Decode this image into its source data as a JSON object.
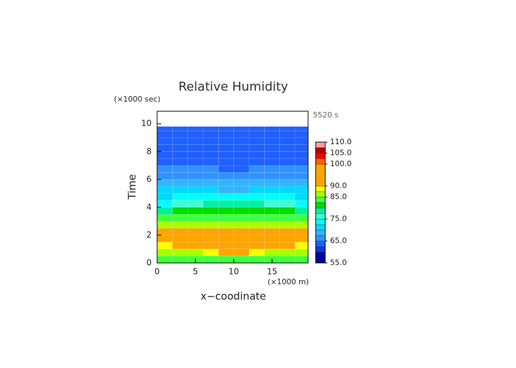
{
  "chart_data": {
    "type": "filled_contour",
    "title": "Relative Humidity",
    "time_label": "5520 s",
    "ylabel": "Time",
    "ylabel_unit": "(×1000 sec)",
    "xlabel": "x−coodinate",
    "xlabel_unit": "(×1000 m)",
    "x_edges": [
      0,
      2,
      4,
      6,
      8,
      10,
      12,
      14,
      16,
      18,
      19.7
    ],
    "y_edges": [
      0,
      0.5,
      1,
      1.5,
      2,
      2.5,
      3,
      3.5,
      4,
      4.5,
      5,
      5.5,
      6,
      6.5,
      7,
      7.5,
      8,
      8.5,
      9,
      9.5,
      9.8
    ],
    "z": [
      [
        83,
        83,
        84,
        84,
        84,
        84,
        84,
        84,
        83,
        83
      ],
      [
        86,
        86,
        87,
        89,
        95,
        95,
        89,
        87,
        86,
        86
      ],
      [
        89,
        90,
        94,
        95,
        95,
        95,
        95,
        94,
        90,
        89
      ],
      [
        95,
        95,
        95,
        95,
        95,
        95,
        95,
        95,
        95,
        95
      ],
      [
        91,
        91,
        91,
        91,
        91,
        91,
        91,
        91,
        91,
        91
      ],
      [
        86,
        86,
        86,
        86,
        86,
        86,
        86,
        86,
        86,
        86
      ],
      [
        83,
        83,
        83,
        83,
        83,
        83,
        83,
        83,
        83,
        83
      ],
      [
        79,
        80,
        81,
        81,
        81,
        81,
        81,
        81,
        80,
        79
      ],
      [
        74,
        75,
        76,
        78,
        78,
        78,
        78,
        76,
        75,
        74
      ],
      [
        71,
        73,
        74,
        74,
        74,
        74,
        74,
        74,
        73,
        71
      ],
      [
        71,
        71,
        71,
        70,
        69,
        69,
        70,
        71,
        71,
        71
      ],
      [
        68,
        68,
        68,
        68,
        68,
        68,
        68,
        68,
        68,
        68
      ],
      [
        66,
        66,
        66,
        66,
        66,
        66,
        66,
        66,
        66,
        66
      ],
      [
        66,
        66,
        66,
        65,
        64,
        64,
        65,
        66,
        66,
        66
      ],
      [
        63,
        63,
        63,
        63,
        63,
        63,
        63,
        63,
        63,
        63
      ],
      [
        63,
        63,
        63,
        63,
        63,
        63,
        63,
        63,
        63,
        63
      ],
      [
        63,
        63,
        63,
        63,
        63,
        63,
        63,
        63,
        63,
        63
      ],
      [
        63,
        63,
        63,
        63,
        63,
        63,
        63,
        63,
        63,
        63
      ],
      [
        63,
        63,
        63,
        63,
        63,
        63,
        63,
        63,
        63,
        63
      ],
      [
        63,
        63,
        63,
        63,
        63,
        63,
        63,
        63,
        63,
        63
      ]
    ],
    "xlim": [
      0,
      19.7
    ],
    "ylim": [
      0,
      10.9
    ],
    "xticks": [
      0,
      5,
      10,
      15
    ],
    "yticks": [
      0,
      2,
      4,
      6,
      8,
      10
    ],
    "colorbar": {
      "levels": [
        55,
        60,
        62.5,
        65,
        67.5,
        70,
        72.5,
        75,
        77.5,
        80,
        82.5,
        85,
        87.5,
        90,
        100,
        102.5,
        105,
        107.5,
        110
      ],
      "colors": [
        "#0000a0",
        "#0040e0",
        "#2060ff",
        "#2f92ff",
        "#34b4ff",
        "#00d8ff",
        "#00ffff",
        "#40ffd0",
        "#00f0a0",
        "#00dc00",
        "#40ff40",
        "#a8ff00",
        "#ffff00",
        "#ffa500",
        "#ff6000",
        "#ff0000",
        "#c00000",
        "#ffa0a0"
      ],
      "lim": [
        55,
        110
      ],
      "ticks": [
        {
          "value": 55,
          "label": "55.0"
        },
        {
          "value": 65,
          "label": "65.0"
        },
        {
          "value": 75,
          "label": "75.0"
        },
        {
          "value": 85,
          "label": "85.0"
        },
        {
          "value": 90,
          "label": "90.0"
        },
        {
          "value": 100,
          "label": "100.0"
        },
        {
          "value": 105,
          "label": "105.0"
        },
        {
          "value": 110,
          "label": "110.0"
        }
      ]
    }
  }
}
